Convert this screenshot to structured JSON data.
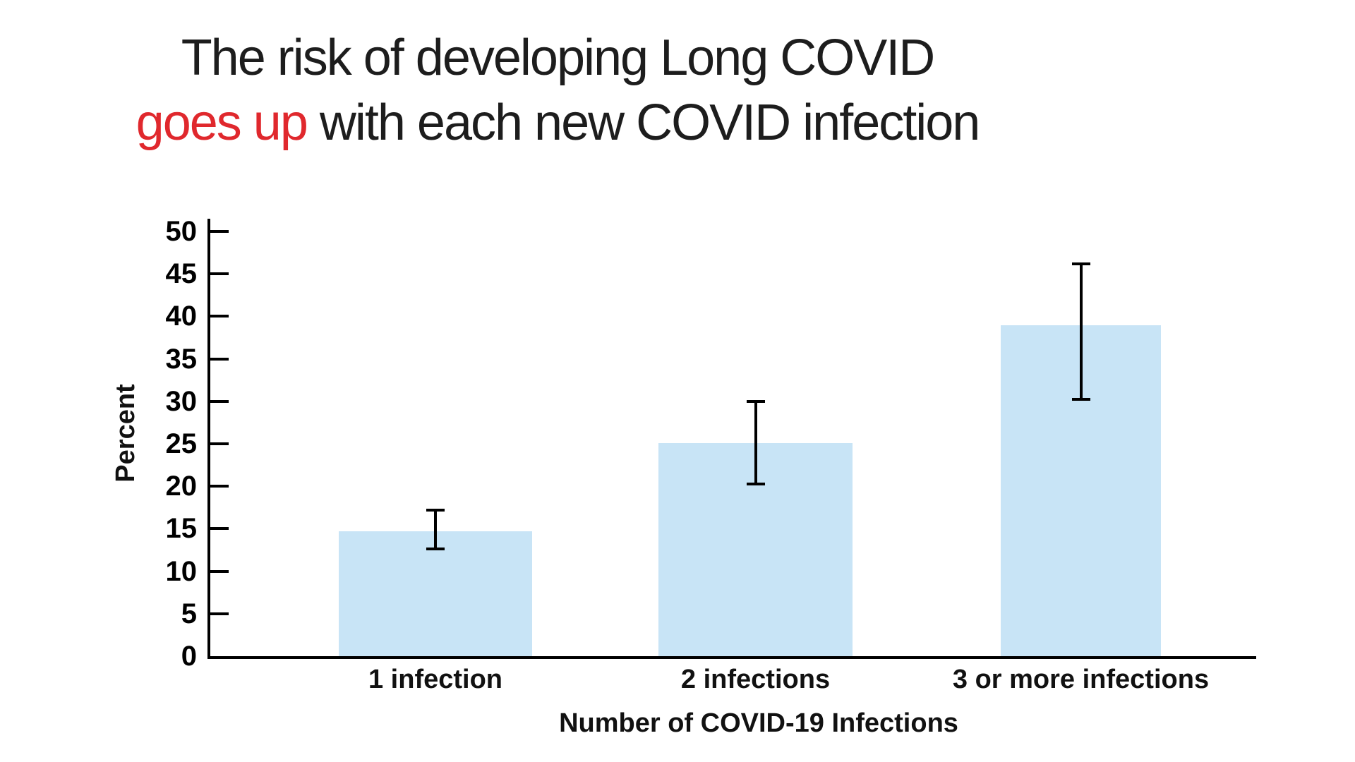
{
  "title": {
    "line1": "The risk of developing Long COVID",
    "line2_highlight": "goes up",
    "line2_rest": " with each new COVID infection"
  },
  "chart_data": {
    "type": "bar",
    "title": "The risk of developing Long COVID goes up with each new COVID infection",
    "title_highlight": "goes up",
    "categories": [
      "1 infection",
      "2 infections",
      "3 or more infections"
    ],
    "values": [
      14.7,
      25.1,
      39
    ],
    "error_bars": {
      "low": [
        12.6,
        20.3,
        30.2
      ],
      "high": [
        17.2,
        30.0,
        46.2
      ]
    },
    "xlabel": "Number of COVID-19 Infections",
    "ylabel": "Percent",
    "yticks": [
      0,
      5,
      10,
      15,
      20,
      25,
      30,
      35,
      40,
      45,
      50
    ],
    "ylim": [
      0,
      51.5
    ],
    "grid": false,
    "legend": null,
    "colors": {
      "bar": "#c8e4f6",
      "error": "#000000",
      "axis": "#000000",
      "title_text": "#1d1d1d",
      "title_highlight": "#e0282d",
      "background": "#ffffff"
    }
  }
}
